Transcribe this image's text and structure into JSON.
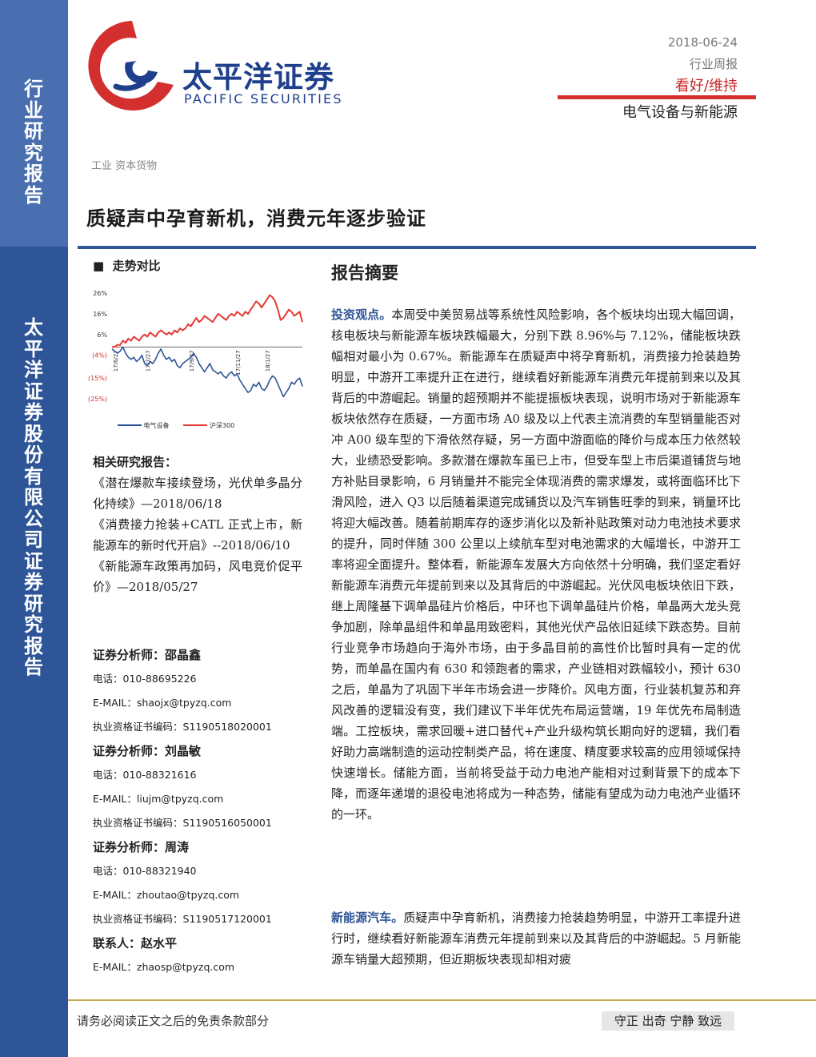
{
  "sidebar": {
    "top_text": "行业研究报告",
    "bottom_text": "太平洋证券股份有限公司证券研究报告"
  },
  "brand": {
    "name_cn": "太平洋证券",
    "name_en": "PACIFIC SECURITIES",
    "logo_icon": "pacific-securities-logo-icon",
    "colors": {
      "red": "#d32f2f",
      "blue": "#1e3f8c"
    }
  },
  "header": {
    "date": "2018-06-24",
    "report_type": "行业周报",
    "rating": "看好/维持",
    "sector": "电气设备与新能源"
  },
  "category": "工业  资本货物",
  "title": "质疑声中孕育新机，消费元年逐步验证",
  "trend": {
    "heading": "走势对比",
    "bullet": "■"
  },
  "chart_data": {
    "type": "line",
    "title": "",
    "y_ticks": [
      "26%",
      "16%",
      "6%",
      "(4%)",
      "(15%)",
      "(25%)"
    ],
    "ylim": [
      -25,
      26
    ],
    "x_ticks": [
      "17/6/27",
      "17/7/27",
      "17/9/27",
      "17/11/27",
      "18/1/27"
    ],
    "grid": false,
    "legend_position": "bottom",
    "colors": {
      "ev": "#2e5597",
      "hs300": "#e53935"
    },
    "series": [
      {
        "name": "电气设备",
        "values": [
          -1,
          -2,
          -3,
          -2,
          0,
          -3,
          -5,
          -6,
          -5,
          -7,
          -6,
          -4,
          -8,
          -9,
          -7,
          -8,
          -6,
          -3,
          -1,
          -4,
          -6,
          -5,
          -7,
          -6,
          -9,
          -10,
          -8,
          -7,
          -6,
          -5,
          -3,
          -5,
          -8,
          -10,
          -12,
          -10,
          -8,
          -11,
          -12,
          -13,
          -12,
          -14,
          -15,
          -13,
          -12,
          -14,
          -13,
          -16,
          -18,
          -20,
          -22,
          -21,
          -18,
          -19,
          -17,
          -20,
          -21,
          -19,
          -16,
          -14,
          -15,
          -18,
          -21,
          -24,
          -22,
          -20,
          -17,
          -18,
          -16,
          -15,
          -19
        ]
      },
      {
        "name": "沪深300",
        "values": [
          0,
          0,
          1,
          1,
          3,
          2,
          4,
          3,
          5,
          4,
          3,
          5,
          6,
          5,
          7,
          6,
          5,
          7,
          8,
          7,
          6,
          7,
          6,
          8,
          7,
          9,
          8,
          9,
          11,
          10,
          12,
          14,
          12,
          13,
          15,
          14,
          13,
          12,
          14,
          16,
          15,
          14,
          13,
          15,
          16,
          15,
          17,
          16,
          15,
          17,
          16,
          18,
          20,
          22,
          21,
          19,
          21,
          23,
          25,
          24,
          22,
          18,
          13,
          14,
          16,
          18,
          17,
          15,
          16,
          17,
          12
        ]
      }
    ]
  },
  "related": {
    "heading": "相关研究报告：",
    "items": [
      "《潜在爆款车接续登场，光伏单多晶分化持续》—2018/06/18",
      "《消费接力抢装+CATL 正式上市，新能源车的新时代开启》--2018/06/10",
      "《新能源车政策再加码，风电竞价促平价》—2018/05/27"
    ]
  },
  "analysts": [
    {
      "label": "证券分析师：",
      "name": "邵晶鑫",
      "phone_label": "电话：",
      "phone": "010-88695226",
      "email_label": "E-MAIL：",
      "email": "shaojx@tpyzq.com",
      "cert_label": "执业资格证书编码：",
      "cert": "S1190518020001"
    },
    {
      "label": "证券分析师：",
      "name": "刘晶敏",
      "phone_label": "电话：",
      "phone": "010-88321616",
      "email_label": "E-MAIL：",
      "email": "liujm@tpyzq.com",
      "cert_label": "执业资格证书编码：",
      "cert": "S1190516050001"
    },
    {
      "label": "证券分析师：",
      "name": "周涛",
      "phone_label": "电话：",
      "phone": "010-88321940",
      "email_label": "E-MAIL：",
      "email": "zhoutao@tpyzq.com",
      "cert_label": "执业资格证书编码：",
      "cert": "S1190517120001"
    }
  ],
  "contact": {
    "label": "联系人：",
    "name": "赵水平",
    "email_label": "E-MAIL：",
    "email": "zhaosp@tpyzq.com"
  },
  "summary": {
    "heading": "报告摘要",
    "p1_lead": "投资观点。",
    "p1": "本周受中美贸易战等系统性风险影响，各个板块均出现大幅回调，核电板块与新能源车板块跌幅最大，分别下跌 8.96%与 7.12%，储能板块跌幅相对最小为 0.67%。新能源车在质疑声中将孕育新机，消费接力抢装趋势明显，中游开工率提升正在进行，继续看好新能源车消费元年提前到来以及其背后的中游崛起。销量的超预期并不能提振板块表现，说明市场对于新能源车板块依然存在质疑，一方面市场 A0 级及以上代表主流消费的车型销量能否对冲 A00 级车型的下滑依然存疑，另一方面中游面临的降价与成本压力依然较大，业绩恐受影响。多款潜在爆款车虽已上市，但受车型上市后渠道铺货与地方补贴目录影响，6 月销量并不能完全体现消费的需求爆发，或将面临环比下滑风险，进入 Q3 以后随着渠道完成铺货以及汽车销售旺季的到来，销量环比将迎大幅改善。随着前期库存的逐步消化以及新补贴政策对动力电池技术要求的提升，同时伴随 300 公里以上续航车型对电池需求的大幅增长，中游开工率将迎全面提升。整体看，新能源车发展大方向依然十分明确，我们坚定看好新能源车消费元年提前到来以及其背后的中游崛起。光伏风电板块依旧下跌，继上周隆基下调单晶硅片价格后，中环也下调单晶硅片价格，单晶两大龙头竞争加剧，除单晶组件和单晶用致密料，其他光伏产品依旧延续下跌态势。目前行业竞争市场趋向于海外市场，由于多晶目前的高性价比暂时具有一定的优势，而单晶在国内有 630 和领跑者的需求，产业链相对跌幅较小，预计 630 之后，单晶为了巩固下半年市场会进一步降价。风电方面，行业装机复苏和弃风改善的逻辑没有变，我们建议下半年优先布局运营端，19 年优先布局制造端。工控板块，需求回暖+进口替代+产业升级构筑长期向好的逻辑，我们看好助力高端制造的运动控制类产品，将在速度、精度要求较高的应用领域保持快速增长。储能方面，当前将受益于动力电池产能相对过剩背景下的成本下降，而逐年递增的退役电池将成为一种态势，储能有望成为动力电池产业循环的一环。",
    "p2_lead": "新能源汽车。",
    "p2": "质疑声中孕育新机，消费接力抢装趋势明显，中游开工率提升进行时，继续看好新能源车消费元年提前到来以及其背后的中游崛起。5 月新能源车销量大超预期，但近期板块表现却相对疲"
  },
  "footer": {
    "disclaimer": "请务必阅读正文之后的免责条款部分",
    "motto": "守正 出奇 宁静 致远"
  }
}
